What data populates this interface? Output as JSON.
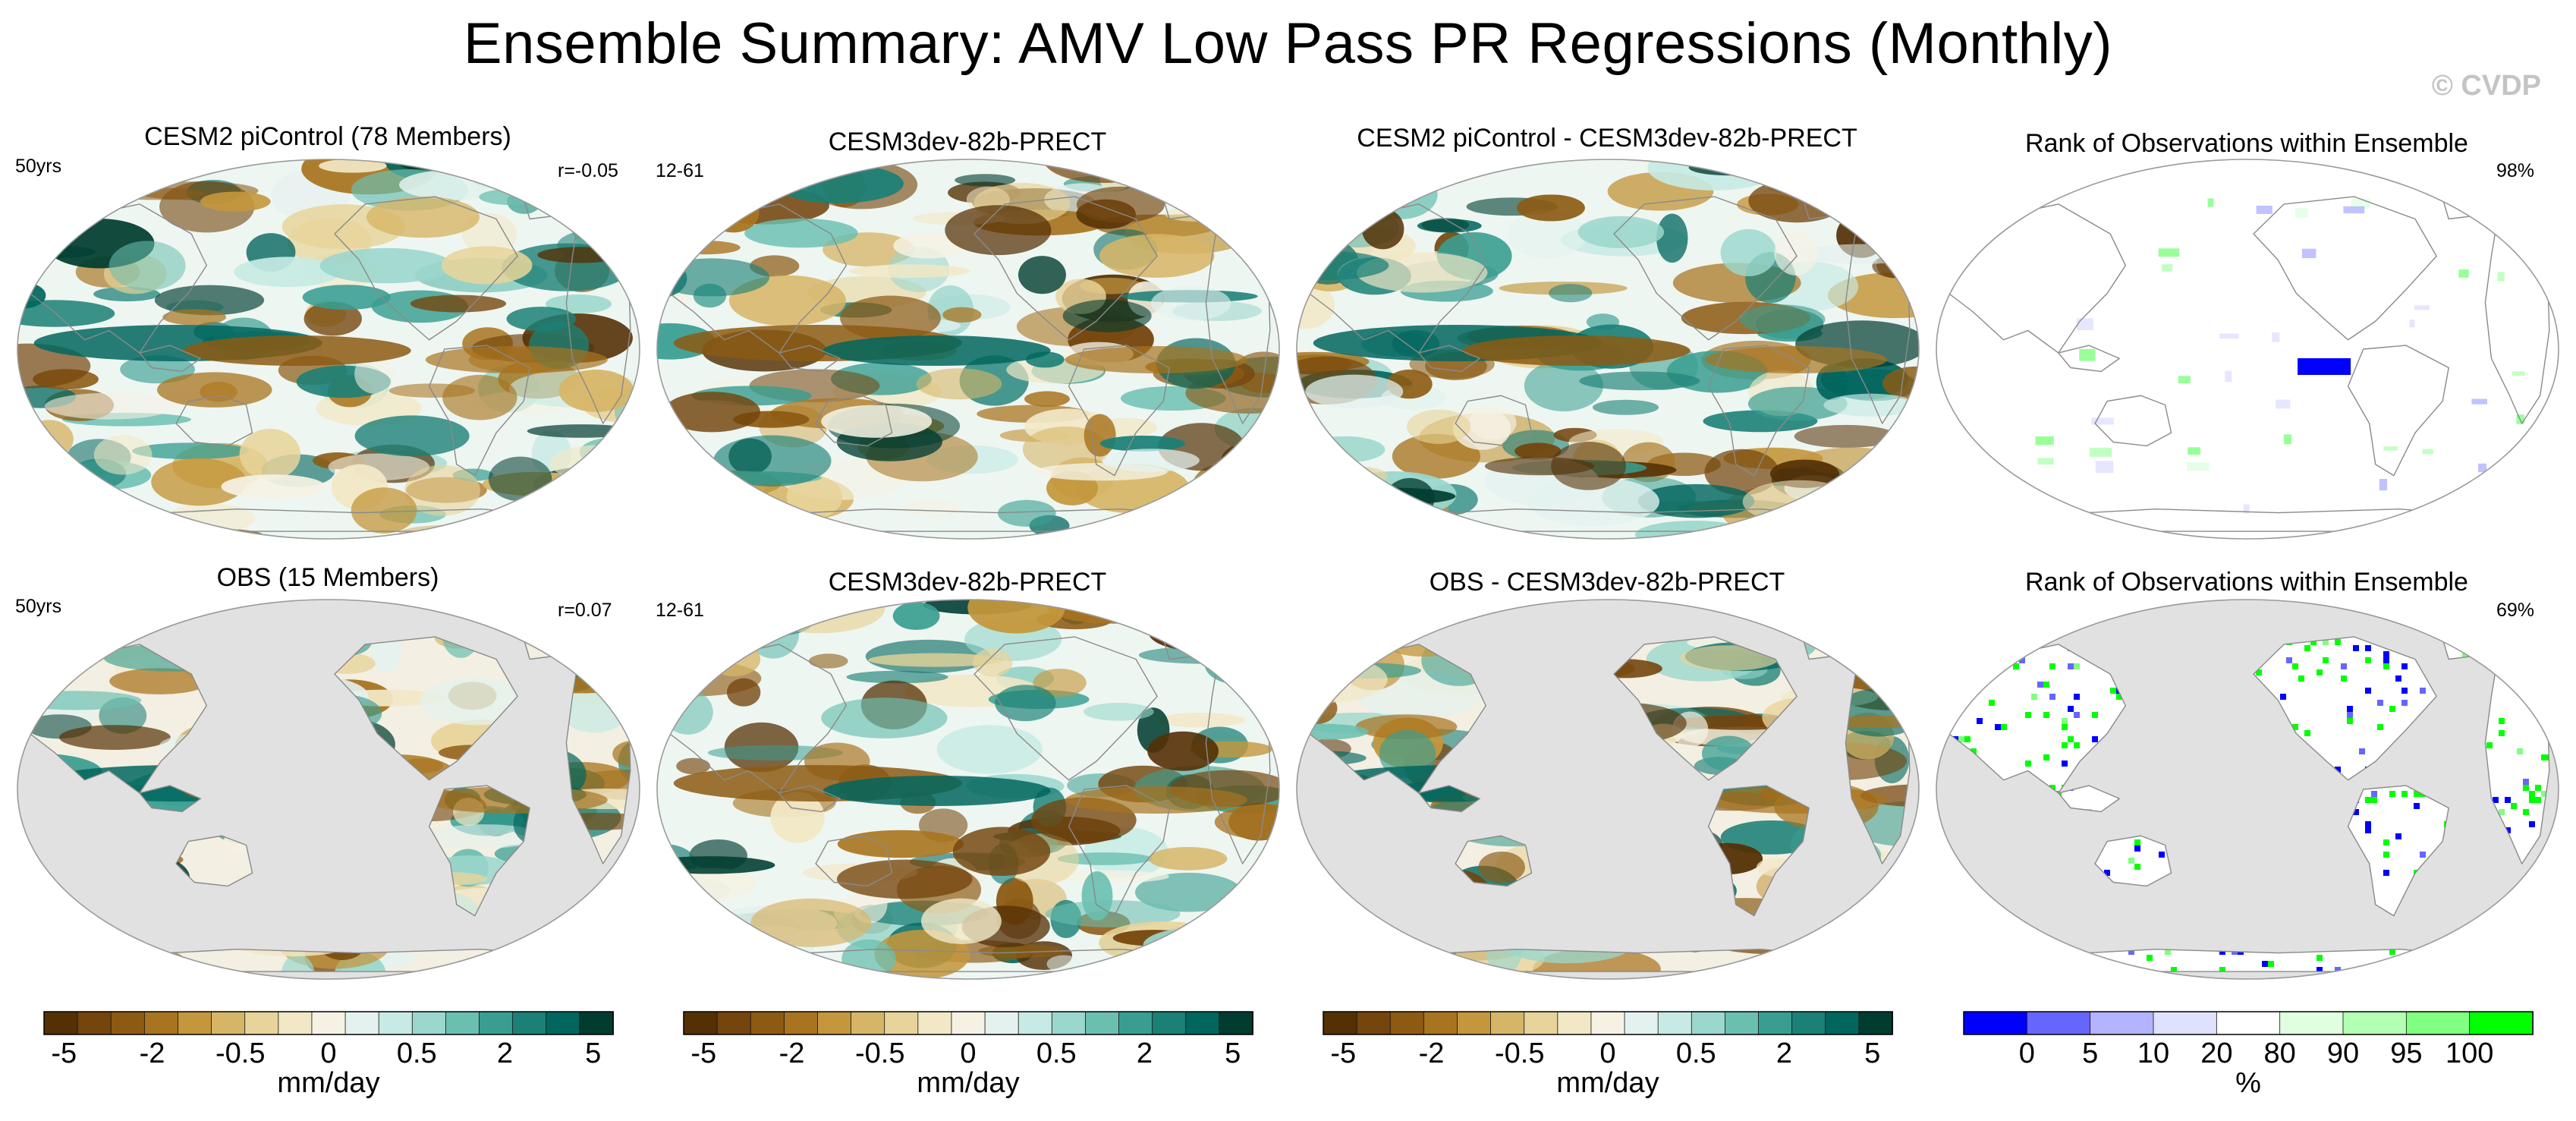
{
  "title": "Ensemble Summary: AMV Low Pass PR Regressions (Monthly)",
  "watermark": "© CVDP",
  "panels": [
    {
      "id": "p1",
      "title": "CESM2 piControl (78 Members)",
      "left_label": "50yrs",
      "right_label": "r=-0.05",
      "style": "diverging",
      "seed": 11,
      "land_only": false
    },
    {
      "id": "p2",
      "title": "CESM3dev-82b-PRECT",
      "left_label": "12-61",
      "right_label": "",
      "style": "diverging",
      "seed": 23,
      "land_only": false
    },
    {
      "id": "p3",
      "title": "CESM2 piControl - CESM3dev-82b-PRECT",
      "left_label": "",
      "right_label": "",
      "style": "diverging",
      "seed": 37,
      "land_only": false
    },
    {
      "id": "p4",
      "title": "Rank of Observations within Ensemble",
      "left_label": "",
      "right_label": "98%",
      "style": "rank-sparse",
      "seed": 41,
      "land_only": false
    },
    {
      "id": "p5",
      "title": "OBS (15 Members)",
      "left_label": "50yrs",
      "right_label": "r=0.07",
      "style": "diverging",
      "seed": 53,
      "land_only": true
    },
    {
      "id": "p6",
      "title": "CESM3dev-82b-PRECT",
      "left_label": "12-61",
      "right_label": "",
      "style": "diverging",
      "seed": 67,
      "land_only": false
    },
    {
      "id": "p7",
      "title": "OBS - CESM3dev-82b-PRECT",
      "left_label": "",
      "right_label": "",
      "style": "diverging",
      "seed": 79,
      "land_only": true
    },
    {
      "id": "p8",
      "title": "Rank of Observations within Ensemble",
      "left_label": "",
      "right_label": "69%",
      "style": "rank-dense",
      "seed": 83,
      "land_only": true
    }
  ],
  "colorbars": [
    {
      "id": "cb1",
      "ticks": [
        "-5",
        "-2",
        "-0.5",
        "0",
        "0.5",
        "2",
        "5"
      ],
      "unit": "mm/day",
      "colors": [
        "#543005",
        "#74450d",
        "#8c5a13",
        "#a8741f",
        "#c4973c",
        "#d7b567",
        "#e8d49a",
        "#f2e8c6",
        "#f5f2e4",
        "#e3f2ef",
        "#c7eae4",
        "#9bd7cc",
        "#6bbfb1",
        "#399e91",
        "#1b8076",
        "#01665e",
        "#003c30"
      ]
    },
    {
      "id": "cb2",
      "ticks": [
        "-5",
        "-2",
        "-0.5",
        "0",
        "0.5",
        "2",
        "5"
      ],
      "unit": "mm/day",
      "colors": [
        "#543005",
        "#74450d",
        "#8c5a13",
        "#a8741f",
        "#c4973c",
        "#d7b567",
        "#e8d49a",
        "#f2e8c6",
        "#f5f2e4",
        "#e3f2ef",
        "#c7eae4",
        "#9bd7cc",
        "#6bbfb1",
        "#399e91",
        "#1b8076",
        "#01665e",
        "#003c30"
      ]
    },
    {
      "id": "cb3",
      "ticks": [
        "-5",
        "-2",
        "-0.5",
        "0",
        "0.5",
        "2",
        "5"
      ],
      "unit": "mm/day",
      "colors": [
        "#543005",
        "#74450d",
        "#8c5a13",
        "#a8741f",
        "#c4973c",
        "#d7b567",
        "#e8d49a",
        "#f2e8c6",
        "#f5f2e4",
        "#e3f2ef",
        "#c7eae4",
        "#9bd7cc",
        "#6bbfb1",
        "#399e91",
        "#1b8076",
        "#01665e",
        "#003c30"
      ]
    },
    {
      "id": "cb4",
      "ticks": [
        "0",
        "5",
        "10",
        "20",
        "80",
        "90",
        "95",
        "100"
      ],
      "unit": "%",
      "colors": [
        "#0000ff",
        "#6666ff",
        "#b3b3ff",
        "#e0e0ff",
        "#ffffff",
        "#e0ffe0",
        "#b3ffb3",
        "#80ff80",
        "#00ff00"
      ]
    }
  ],
  "colors": {
    "missing": "#e1e1e1",
    "coast": "#8a8a8a",
    "outline": "#9a9a9a"
  }
}
